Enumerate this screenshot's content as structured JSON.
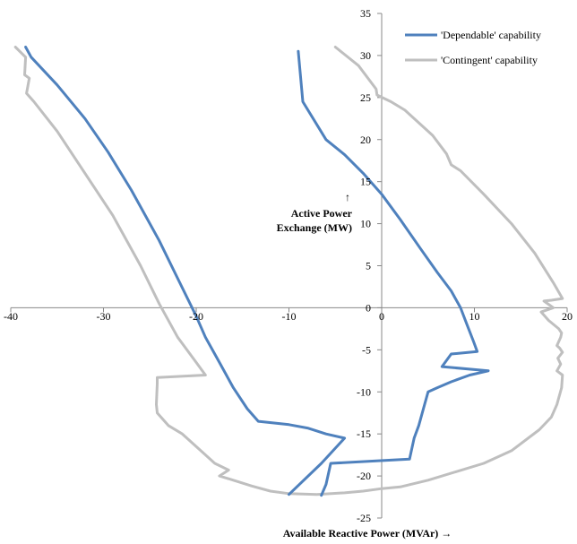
{
  "chart_data": {
    "type": "line",
    "xlabel": "Available  Reactive Power (MVAr) →",
    "ylabel_arrow": "↑",
    "ylabel_lines": [
      "Active Power",
      "Exchange (MW)"
    ],
    "xlim": [
      -40,
      20
    ],
    "ylim": [
      -25,
      35
    ],
    "x_ticks": [
      -40,
      -30,
      -20,
      -10,
      0,
      10,
      20
    ],
    "y_ticks": [
      -25,
      -20,
      -15,
      -10,
      -5,
      0,
      5,
      10,
      15,
      20,
      25,
      30,
      35
    ],
    "grid": false,
    "legend_position": "top-right",
    "colors": {
      "dependable": "#4f81bd",
      "contingent": "#bfbfbf"
    },
    "series": [
      {
        "name": "'Dependable' capability",
        "color": "#4f81bd",
        "segments": [
          [
            [
              -38.4,
              31
            ],
            [
              -37.8,
              29.8
            ],
            [
              -35,
              26.5
            ],
            [
              -32,
              22.5
            ],
            [
              -29.5,
              18.5
            ],
            [
              -27,
              14
            ],
            [
              -24,
              8
            ],
            [
              -22,
              3.5
            ],
            [
              -20,
              -1
            ],
            [
              -19,
              -3.5
            ],
            [
              -17.5,
              -6.5
            ],
            [
              -16,
              -9.5
            ],
            [
              -14.5,
              -12
            ],
            [
              -13.3,
              -13.5
            ],
            [
              -10,
              -13.9
            ],
            [
              -8,
              -14.3
            ],
            [
              -6,
              -15.0
            ],
            [
              -4,
              -15.5
            ],
            [
              -6.5,
              -18.5
            ],
            [
              -10,
              -22.2
            ]
          ],
          [
            [
              -9,
              30.5
            ],
            [
              -8.5,
              24.5
            ],
            [
              -6,
              20
            ],
            [
              -4,
              18.2
            ],
            [
              -2,
              16
            ],
            [
              0,
              13.5
            ],
            [
              2,
              10.5
            ],
            [
              4.2,
              7
            ],
            [
              6,
              4.2
            ],
            [
              7.5,
              2
            ],
            [
              8.5,
              0
            ],
            [
              9.2,
              -2
            ],
            [
              9.9,
              -4
            ],
            [
              10.3,
              -5.2
            ],
            [
              7.5,
              -5.5
            ],
            [
              6.5,
              -7
            ],
            [
              11.5,
              -7.5
            ],
            [
              9.5,
              -8
            ],
            [
              7.5,
              -8.8
            ],
            [
              6,
              -9.5
            ],
            [
              5,
              -10
            ],
            [
              4.5,
              -12
            ],
            [
              4.0,
              -14
            ],
            [
              3.5,
              -15.5
            ],
            [
              3.0,
              -18
            ],
            [
              -5.5,
              -18.5
            ],
            [
              -6,
              -21
            ],
            [
              -6.5,
              -22.3
            ]
          ]
        ]
      },
      {
        "name": "'Contingent' capability",
        "color": "#bfbfbf",
        "segments": [
          [
            [
              -39.5,
              31
            ],
            [
              -38.4,
              29.8
            ],
            [
              -38.5,
              27.7
            ],
            [
              -38,
              27.3
            ],
            [
              -38.3,
              25.5
            ],
            [
              -37.5,
              24.5
            ],
            [
              -35,
              21
            ],
            [
              -32,
              16
            ],
            [
              -29,
              11
            ],
            [
              -26,
              5
            ],
            [
              -24,
              0.5
            ],
            [
              -22,
              -3.5
            ],
            [
              -20,
              -6.5
            ],
            [
              -19,
              -8
            ],
            [
              -24.2,
              -8.3
            ],
            [
              -24.2,
              -9
            ],
            [
              -24.3,
              -11.5
            ],
            [
              -24.2,
              -12.5
            ],
            [
              -23,
              -14
            ],
            [
              -21.5,
              -15
            ],
            [
              -20,
              -16.5
            ],
            [
              -18,
              -18.5
            ],
            [
              -16.5,
              -19.3
            ],
            [
              -17.5,
              -20
            ],
            [
              -16,
              -20.5
            ],
            [
              -14,
              -21.2
            ],
            [
              -12,
              -21.8
            ],
            [
              -10,
              -22.1
            ],
            [
              -7,
              -22.2
            ],
            [
              -4,
              -22
            ],
            [
              -2,
              -21.8
            ],
            [
              0,
              -21.5
            ],
            [
              2,
              -21.3
            ],
            [
              5,
              -20.5
            ],
            [
              8,
              -19.5
            ],
            [
              11,
              -18.5
            ],
            [
              14,
              -17
            ],
            [
              17,
              -14.5
            ],
            [
              18.3,
              -13
            ],
            [
              18.9,
              -11.5
            ],
            [
              19.4,
              -9.5
            ],
            [
              19.5,
              -8
            ],
            [
              18.9,
              -7.5
            ],
            [
              19.3,
              -6.7
            ],
            [
              19,
              -6
            ],
            [
              19.5,
              -5.3
            ],
            [
              19.2,
              -4.8
            ],
            [
              18.9,
              -4.5
            ],
            [
              19.3,
              -3.5
            ],
            [
              19.4,
              -3
            ],
            [
              19.1,
              -2.5
            ],
            [
              18,
              -1.5
            ],
            [
              17.2,
              -0.5
            ],
            [
              18.5,
              0
            ],
            [
              17.5,
              0.8
            ],
            [
              18.3,
              0.9
            ],
            [
              19.5,
              1.1
            ],
            [
              18.5,
              3
            ],
            [
              16.5,
              6.5
            ],
            [
              14,
              10
            ],
            [
              11,
              13.5
            ],
            [
              8.5,
              16.3
            ],
            [
              7.5,
              17
            ],
            [
              7.0,
              18.3
            ],
            [
              5.5,
              20.5
            ],
            [
              4,
              22
            ],
            [
              2.5,
              23.5
            ],
            [
              1,
              24.5
            ],
            [
              -0.5,
              25.3
            ],
            [
              -0.6,
              26
            ],
            [
              -2.5,
              28.8
            ],
            [
              -5,
              31
            ]
          ]
        ]
      }
    ]
  }
}
